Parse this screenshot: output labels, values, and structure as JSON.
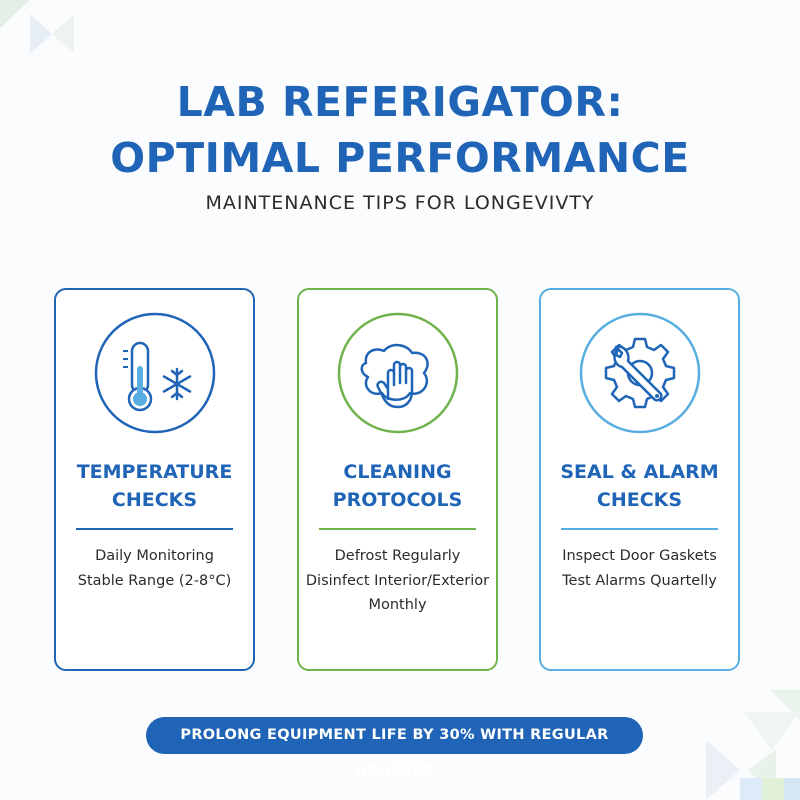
{
  "header": {
    "title_line1": "LAB REFERIGATOR:",
    "title_line2": "OPTIMAL PERFORMANCE",
    "subtitle": "MAINTENANCE TIPS FOR LONGEVIVTY"
  },
  "cards": [
    {
      "icon": "thermometer-snowflake-icon",
      "heading_line1": "TEMPERATURE",
      "heading_line2": "CHECKS",
      "lines": [
        "Daily Monitoring",
        "Stable Range (2-8°C)"
      ],
      "accent": "#1f64b6"
    },
    {
      "icon": "cleaning-hand-icon",
      "heading_line1": "CLEANING",
      "heading_line2": "PROTOCOLS",
      "lines": [
        "Defrost Regularly",
        "Disinfect Interior/Exterior",
        "Monthly"
      ],
      "accent": "#6fb34d"
    },
    {
      "icon": "wrench-gear-icon",
      "heading_line1": "SEAL & ALARM",
      "heading_line2": "CHECKS",
      "lines": [
        "Inspect Door Gaskets",
        "Test Alarms Quartelly"
      ],
      "accent": "#58aee0"
    }
  ],
  "banner": {
    "text": "PROLONG EQUIPMENT LIFE BY 30% WITH REGULAR UPUKEEP"
  },
  "colors": {
    "brand_blue": "#1f64b6",
    "green": "#6fb34d",
    "light_blue": "#58aee0"
  }
}
